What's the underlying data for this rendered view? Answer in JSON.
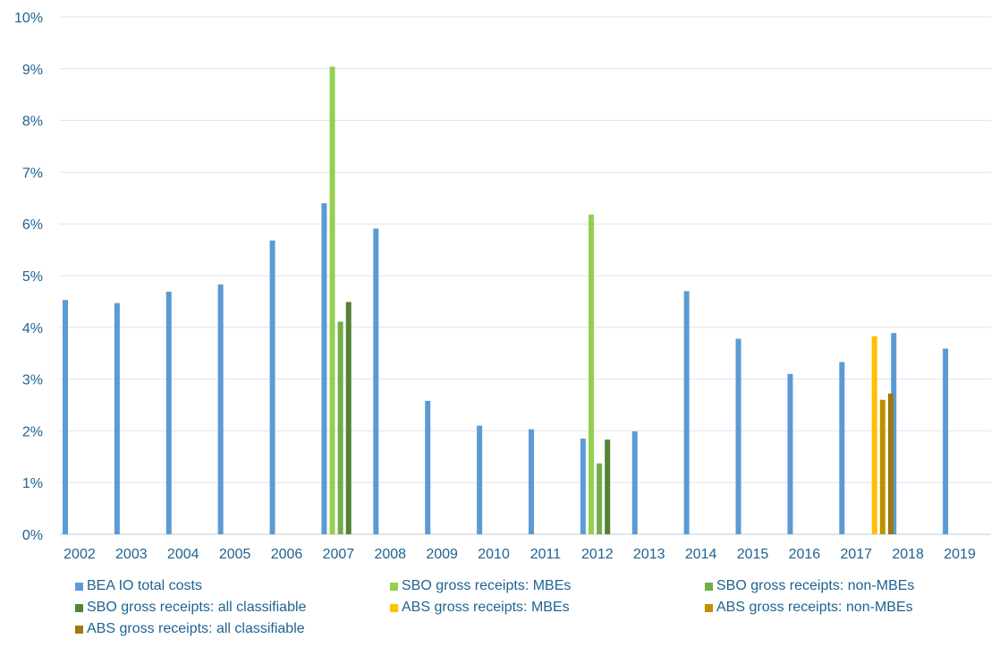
{
  "chart_data": {
    "type": "bar",
    "categories": [
      "2002",
      "2003",
      "2004",
      "2005",
      "2006",
      "2007",
      "2008",
      "2009",
      "2010",
      "2011",
      "2012",
      "2013",
      "2014",
      "2015",
      "2016",
      "2017",
      "2018",
      "2019"
    ],
    "ylim": [
      0,
      10
    ],
    "yticks": [
      "0%",
      "1%",
      "2%",
      "3%",
      "4%",
      "5%",
      "6%",
      "7%",
      "8%",
      "9%",
      "10%"
    ],
    "grid": true,
    "legend_position": "bottom",
    "series": [
      {
        "name": "BEA IO total costs",
        "color": "#5b9bd5",
        "points": [
          {
            "x": "2002",
            "y": 4.53
          },
          {
            "x": "2003",
            "y": 4.47
          },
          {
            "x": "2004",
            "y": 4.69
          },
          {
            "x": "2005",
            "y": 4.83
          },
          {
            "x": "2006",
            "y": 5.68
          },
          {
            "x": "2007",
            "y": 6.4
          },
          {
            "x": "2008",
            "y": 5.91
          },
          {
            "x": "2009",
            "y": 2.58
          },
          {
            "x": "2010",
            "y": 2.1
          },
          {
            "x": "2011",
            "y": 2.03
          },
          {
            "x": "2012",
            "y": 1.85
          },
          {
            "x": "2013",
            "y": 1.99
          },
          {
            "x": "2014",
            "y": 4.7
          },
          {
            "x": "2015",
            "y": 3.78
          },
          {
            "x": "2016",
            "y": 3.1
          },
          {
            "x": "2017",
            "y": 3.33
          },
          {
            "x": "2018",
            "y": 3.89
          },
          {
            "x": "2019",
            "y": 3.59
          }
        ]
      },
      {
        "name": "SBO gross receipts: MBEs",
        "color": "#92d050",
        "points": [
          {
            "x": "2007",
            "y": 9.04
          },
          {
            "x": "2012",
            "y": 6.18
          }
        ]
      },
      {
        "name": "SBO gross receipts: non-MBEs",
        "color": "#70ad47",
        "points": [
          {
            "x": "2007",
            "y": 4.11
          },
          {
            "x": "2012",
            "y": 1.37
          }
        ]
      },
      {
        "name": "SBO gross receipts: all classifiable",
        "color": "#548235",
        "points": [
          {
            "x": "2007",
            "y": 4.49
          },
          {
            "x": "2012",
            "y": 1.83
          }
        ]
      },
      {
        "name": "ABS gross receipts: MBEs",
        "color": "#ffc000",
        "points": [
          {
            "x": "2017",
            "y": 3.83
          }
        ]
      },
      {
        "name": "ABS gross receipts: non-MBEs",
        "color": "#bf9000",
        "points": [
          {
            "x": "2017",
            "y": 2.6
          }
        ]
      },
      {
        "name": "ABS gross receipts: all classifiable",
        "color": "#9c7a0c",
        "points": [
          {
            "x": "2017",
            "y": 2.72
          }
        ]
      }
    ]
  }
}
